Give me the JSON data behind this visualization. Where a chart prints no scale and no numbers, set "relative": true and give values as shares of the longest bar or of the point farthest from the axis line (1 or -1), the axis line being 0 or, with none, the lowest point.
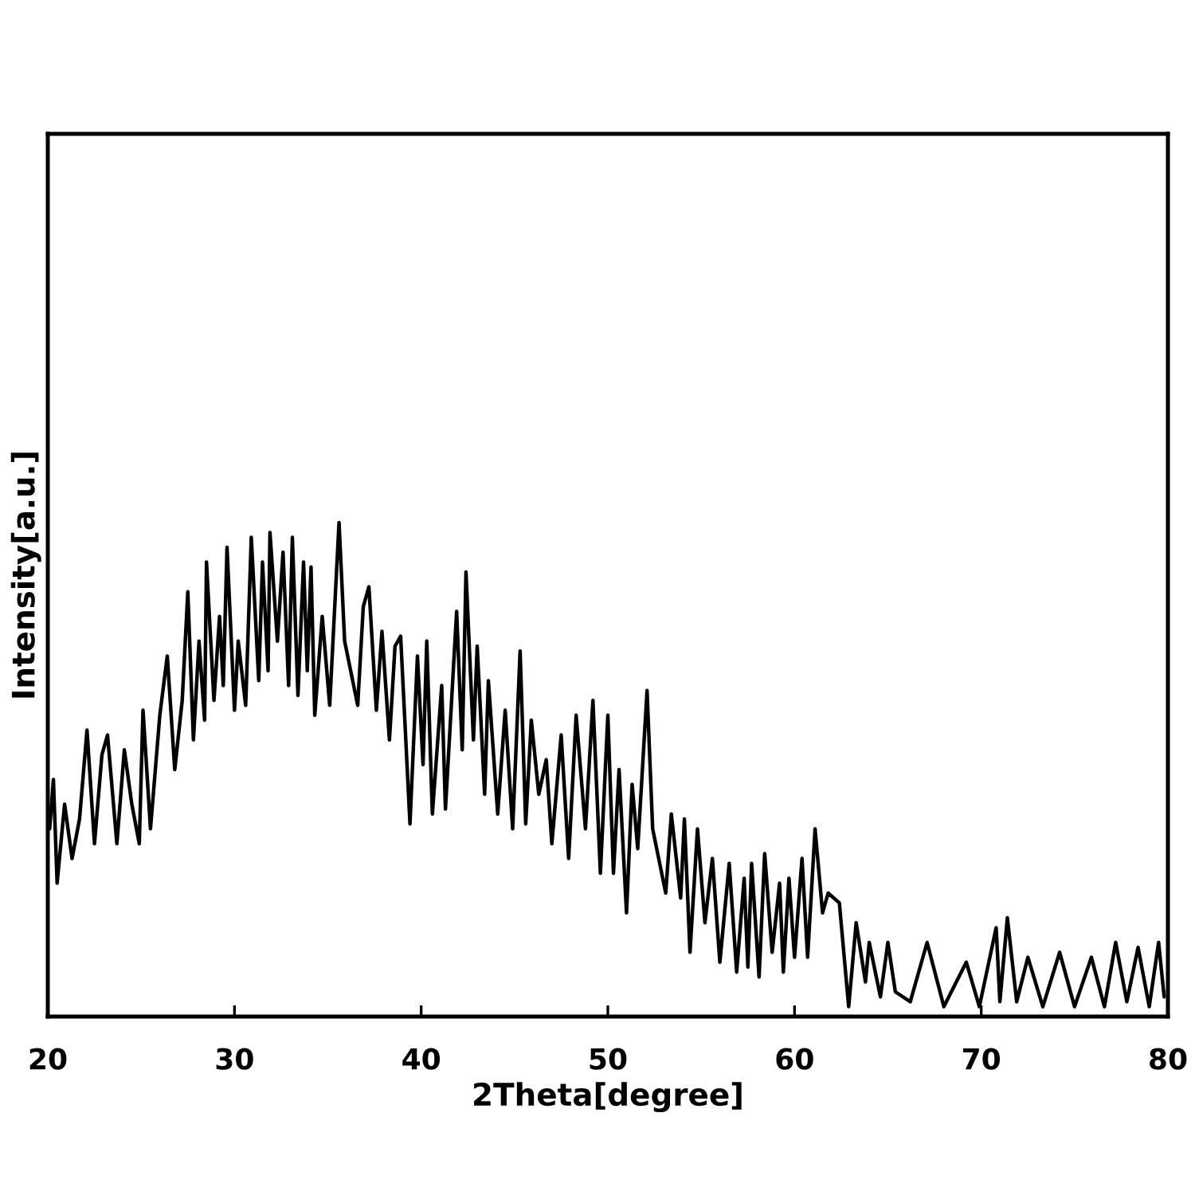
{
  "chart_data": {
    "type": "line",
    "xlabel": "2Theta[degree]",
    "ylabel": "Intensity[a.u.]",
    "relative": true,
    "xlim": [
      20,
      80
    ],
    "xticks": [
      20,
      30,
      40,
      50,
      60,
      70,
      80
    ],
    "color": "#000000",
    "x": [
      20.1,
      20.3,
      20.5,
      20.9,
      21.3,
      21.7,
      22.1,
      22.5,
      22.9,
      23.2,
      23.7,
      24.1,
      24.5,
      24.9,
      25.1,
      25.5,
      26.0,
      26.4,
      26.8,
      27.2,
      27.5,
      27.8,
      28.1,
      28.4,
      28.5,
      28.9,
      29.2,
      29.4,
      29.6,
      30.0,
      30.2,
      30.6,
      30.9,
      31.3,
      31.5,
      31.8,
      31.9,
      32.3,
      32.6,
      32.9,
      33.1,
      33.4,
      33.7,
      33.9,
      34.1,
      34.3,
      34.7,
      35.1,
      35.6,
      35.9,
      36.6,
      36.9,
      37.2,
      37.6,
      37.9,
      38.3,
      38.6,
      38.9,
      39.4,
      39.8,
      40.1,
      40.3,
      40.6,
      41.1,
      41.3,
      41.9,
      42.2,
      42.4,
      42.8,
      43.0,
      43.4,
      43.6,
      44.1,
      44.5,
      44.9,
      45.3,
      45.6,
      45.9,
      46.3,
      46.7,
      47.0,
      47.5,
      47.9,
      48.3,
      48.8,
      49.2,
      49.6,
      50.0,
      50.3,
      50.6,
      51.0,
      51.3,
      51.6,
      52.1,
      52.4,
      53.1,
      53.4,
      53.9,
      54.1,
      54.4,
      54.8,
      55.2,
      55.6,
      56.0,
      56.5,
      56.9,
      57.3,
      57.5,
      57.7,
      58.1,
      58.4,
      58.8,
      59.2,
      59.4,
      59.7,
      60.0,
      60.4,
      60.7,
      61.1,
      61.5,
      61.8,
      62.4,
      62.9,
      63.3,
      63.8,
      64.0,
      64.6,
      65.0,
      65.4,
      66.2,
      67.1,
      68.0,
      69.2,
      69.9,
      70.8,
      71.0,
      71.4,
      71.9,
      72.5,
      73.3,
      74.2,
      75.0,
      75.9,
      76.6,
      77.2,
      77.8,
      78.4,
      79.0,
      79.5,
      79.8
    ],
    "values": [
      0.38,
      0.48,
      0.27,
      0.43,
      0.32,
      0.4,
      0.58,
      0.35,
      0.53,
      0.57,
      0.35,
      0.54,
      0.43,
      0.35,
      0.62,
      0.38,
      0.61,
      0.73,
      0.5,
      0.64,
      0.86,
      0.56,
      0.76,
      0.6,
      0.92,
      0.64,
      0.81,
      0.67,
      0.95,
      0.62,
      0.76,
      0.63,
      0.97,
      0.68,
      0.92,
      0.7,
      0.98,
      0.76,
      0.94,
      0.67,
      0.97,
      0.65,
      0.92,
      0.7,
      0.91,
      0.61,
      0.81,
      0.63,
      1.0,
      0.76,
      0.63,
      0.83,
      0.87,
      0.62,
      0.78,
      0.56,
      0.75,
      0.77,
      0.39,
      0.73,
      0.51,
      0.76,
      0.41,
      0.67,
      0.42,
      0.82,
      0.54,
      0.9,
      0.56,
      0.75,
      0.45,
      0.68,
      0.41,
      0.62,
      0.38,
      0.74,
      0.39,
      0.6,
      0.45,
      0.52,
      0.35,
      0.57,
      0.32,
      0.61,
      0.38,
      0.64,
      0.29,
      0.61,
      0.29,
      0.5,
      0.21,
      0.47,
      0.34,
      0.66,
      0.38,
      0.25,
      0.41,
      0.24,
      0.4,
      0.13,
      0.38,
      0.19,
      0.32,
      0.11,
      0.31,
      0.09,
      0.28,
      0.1,
      0.31,
      0.08,
      0.33,
      0.13,
      0.27,
      0.09,
      0.28,
      0.12,
      0.32,
      0.12,
      0.38,
      0.21,
      0.25,
      0.23,
      0.02,
      0.19,
      0.07,
      0.15,
      0.04,
      0.15,
      0.05,
      0.03,
      0.15,
      0.02,
      0.11,
      0.02,
      0.18,
      0.03,
      0.2,
      0.03,
      0.12,
      0.02,
      0.13,
      0.02,
      0.12,
      0.02,
      0.15,
      0.03,
      0.14,
      0.02,
      0.15,
      0.04
    ]
  }
}
